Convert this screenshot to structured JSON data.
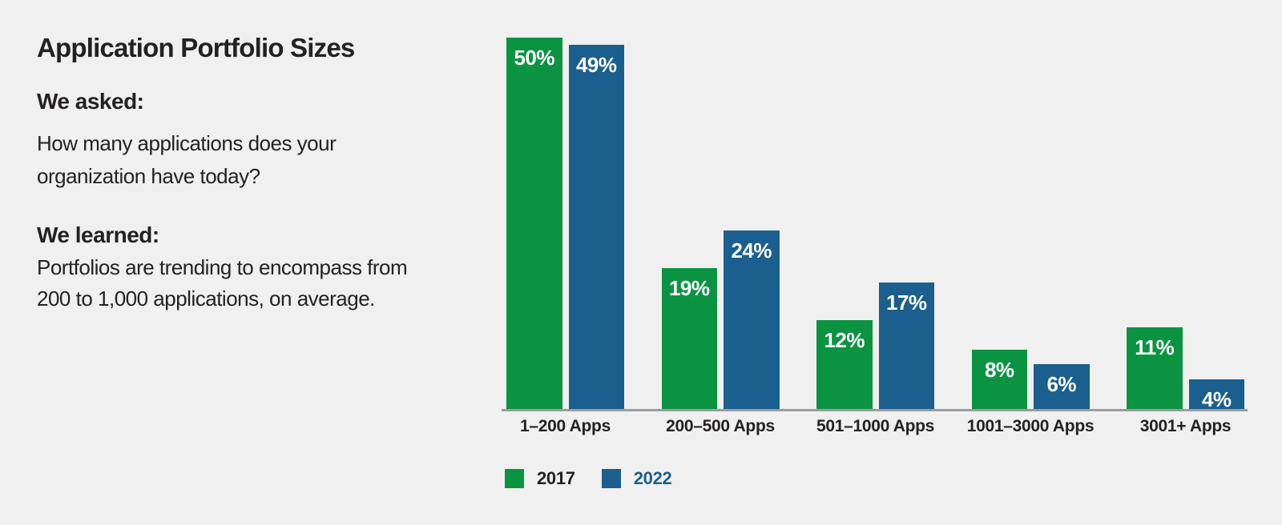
{
  "colors": {
    "background": "#f0f0f0",
    "green_2017": "#0a9442",
    "blue_2022": "#1a5f8e",
    "axis_line": "#9b9c9e",
    "text_dark": "#242122",
    "bar_value_text": "#ffffff"
  },
  "intro": {
    "title": "Application Portfolio Sizes",
    "asked_heading": "We asked:",
    "asked_lines": [
      "How many applications does your",
      "organization have today?"
    ],
    "learned_heading": "We learned:",
    "learned_lines": [
      "Portfolios are trending to encompass from",
      "200 to 1,000 applications, on average."
    ]
  },
  "chart_data": {
    "type": "bar",
    "title": "Application Portfolio Sizes",
    "categories": [
      "1–200 Apps",
      "200–500 Apps",
      "501–1000 Apps",
      "1001–3000 Apps",
      "3001+ Apps"
    ],
    "series": [
      {
        "name": "2017",
        "color": "#0a9442",
        "legend_text_color": "#242122",
        "values": [
          50,
          19,
          12,
          8,
          11
        ]
      },
      {
        "name": "2022",
        "color": "#1a5f8e",
        "legend_text_color": "#1a5f8e",
        "values": [
          49,
          24,
          17,
          6,
          4
        ]
      }
    ],
    "value_suffix": "%",
    "value_labels": "inside-top",
    "xlabel": "",
    "ylabel": "",
    "ylim": [
      0,
      50
    ],
    "grid": false,
    "legend_position": "bottom-left"
  }
}
